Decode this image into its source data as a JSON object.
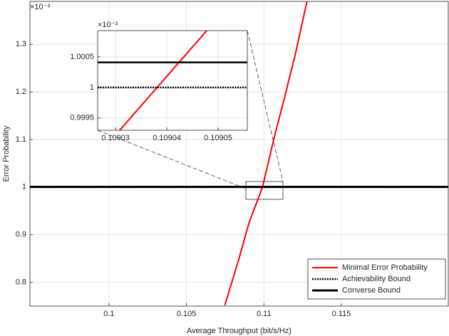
{
  "chart_data": [
    {
      "type": "line",
      "xlabel": "Average Throughput (bit/s/Hz)",
      "ylabel": "Error Probability",
      "y_exponent_label": "×10⁻³",
      "xlim": [
        0.0949,
        0.1219
      ],
      "ylim": [
        0.75,
        1.39
      ],
      "xticks": [
        0.1,
        0.105,
        0.11,
        0.115
      ],
      "yticks": [
        0.8,
        0.9,
        1,
        1.1,
        1.2,
        1.3
      ],
      "grid": true,
      "legend": "southeast",
      "series": [
        {
          "name": "Minimal Error Probability",
          "color": "#ff0000",
          "linestyle": "solid",
          "linewidth": 2,
          "x": [
            0.10748,
            0.10835,
            0.10904,
            0.10991,
            0.11064,
            0.11133,
            0.11202,
            0.11278
          ],
          "values": [
            0.752,
            0.845,
            0.925,
            1.0,
            1.101,
            1.188,
            1.278,
            1.39
          ]
        },
        {
          "name": "Achievability Bound",
          "color": "#000000",
          "linestyle": "dotted",
          "linewidth": 2.5,
          "x": [
            0.0949,
            0.1219
          ],
          "values": [
            1.0,
            1.0
          ]
        },
        {
          "name": "Converse Bound",
          "color": "#000000",
          "linestyle": "solid",
          "linewidth": 3,
          "x": [
            0.0949,
            0.1219
          ],
          "values": [
            1.0004,
            1.0004
          ]
        }
      ]
    },
    {
      "type": "line",
      "y_exponent_label": "×10⁻³",
      "xlim": [
        0.1090265,
        0.1090557
      ],
      "ylim": [
        0.9993,
        1.00093
      ],
      "xticks": [
        0.10903,
        0.10904,
        0.10905
      ],
      "yticks": [
        0.9995,
        1,
        1.0005
      ],
      "grid": true,
      "series": [
        {
          "color": "#ff0000",
          "linestyle": "solid",
          "linewidth": 2,
          "x": [
            0.1090308,
            0.1090478
          ],
          "values": [
            0.9993,
            1.00093
          ]
        },
        {
          "color": "#000000",
          "linestyle": "dotted",
          "linewidth": 2.5,
          "x": [
            0.1090265,
            0.1090557
          ],
          "values": [
            1.0,
            1.0
          ]
        },
        {
          "color": "#000000",
          "linestyle": "solid",
          "linewidth": 2.5,
          "x": [
            0.1090265,
            0.1090557
          ],
          "values": [
            1.00041,
            1.00041
          ]
        }
      ]
    }
  ]
}
